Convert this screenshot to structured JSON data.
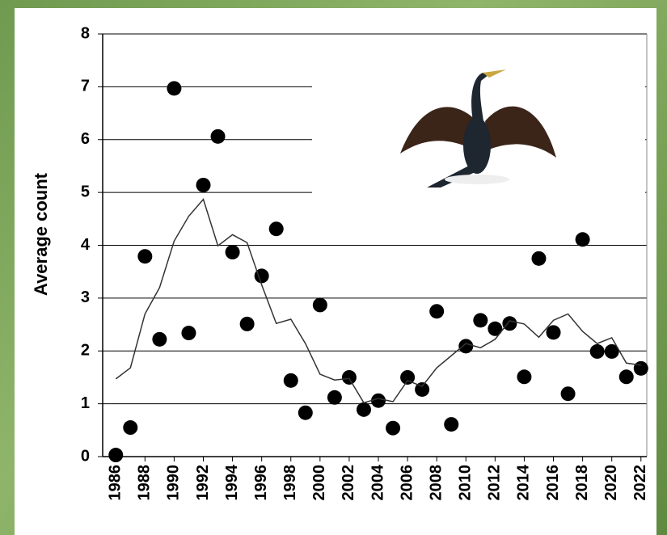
{
  "chart_data": {
    "type": "scatter",
    "ylabel": "Average count",
    "x": [
      1986,
      1987,
      1988,
      1989,
      1990,
      1991,
      1992,
      1993,
      1994,
      1995,
      1996,
      1997,
      1998,
      1999,
      2000,
      2001,
      2002,
      2003,
      2004,
      2005,
      2006,
      2007,
      2008,
      2009,
      2010,
      2011,
      2012,
      2013,
      2014,
      2015,
      2016,
      2017,
      2018,
      2019,
      2020,
      2021,
      2022
    ],
    "series": [
      {
        "mode": "markers",
        "color": "#000000",
        "values": [
          0.03,
          0.55,
          3.79,
          2.22,
          6.97,
          2.34,
          5.14,
          6.06,
          3.87,
          2.51,
          3.42,
          4.31,
          1.44,
          0.83,
          2.87,
          1.12,
          1.5,
          0.89,
          1.06,
          0.54,
          1.5,
          1.27,
          2.75,
          0.61,
          2.09,
          2.58,
          2.42,
          2.52,
          1.51,
          3.75,
          2.35,
          1.19,
          4.11,
          1.99,
          1.99,
          1.51,
          1.67
        ]
      },
      {
        "mode": "line",
        "color": "#333333",
        "values": [
          1.47,
          1.68,
          2.7,
          3.2,
          4.08,
          4.55,
          4.87,
          3.99,
          4.2,
          4.05,
          3.25,
          2.52,
          2.6,
          2.14,
          1.56,
          1.45,
          1.48,
          1.02,
          1.1,
          1.04,
          1.44,
          1.33,
          1.68,
          1.91,
          2.14,
          2.06,
          2.22,
          2.57,
          2.51,
          2.26,
          2.58,
          2.7,
          2.37,
          2.14,
          2.25,
          1.77,
          1.73
        ]
      }
    ],
    "xlim": [
      1985.1,
      2022.4
    ],
    "xticks": [
      1986,
      1988,
      1990,
      1992,
      1994,
      1996,
      1998,
      2000,
      2002,
      2004,
      2006,
      2008,
      2010,
      2012,
      2014,
      2016,
      2018,
      2020,
      2022
    ],
    "ylim": [
      0,
      8
    ],
    "yticks": [
      0,
      1,
      2,
      3,
      4,
      5,
      6,
      7,
      8
    ],
    "grid": true
  }
}
